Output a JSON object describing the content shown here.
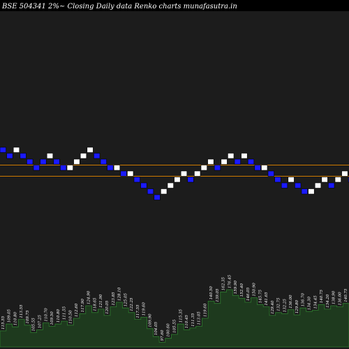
{
  "chart_data": {
    "type": "renko",
    "title": "BSE 504341 2%~  Closing Daily data  Renko  charts munafasutra.in",
    "colors": {
      "background": "#000000",
      "plot_bg": "#1c1c1c",
      "up_brick": "#ffffff",
      "down_brick": "#1a1aff",
      "brick_outline": "#000000",
      "reference_line": "#cc7a00",
      "volume_fill": "#1e3a1e",
      "volume_line": "#2e7d2e",
      "label_color": "#ffffff"
    },
    "reference_lines": [
      "upper",
      "lower"
    ],
    "bricks": [
      {
        "d": "down",
        "lvl": 0
      },
      {
        "d": "down",
        "lvl": -1
      },
      {
        "d": "up",
        "lvl": 0
      },
      {
        "d": "down",
        "lvl": -1
      },
      {
        "d": "down",
        "lvl": -2
      },
      {
        "d": "down",
        "lvl": -3
      },
      {
        "d": "down",
        "lvl": -2
      },
      {
        "d": "up",
        "lvl": -1
      },
      {
        "d": "down",
        "lvl": -2
      },
      {
        "d": "down",
        "lvl": -3
      },
      {
        "d": "up",
        "lvl": -3
      },
      {
        "d": "up",
        "lvl": -2
      },
      {
        "d": "up",
        "lvl": -1
      },
      {
        "d": "up",
        "lvl": 0
      },
      {
        "d": "down",
        "lvl": -1
      },
      {
        "d": "down",
        "lvl": -2
      },
      {
        "d": "down",
        "lvl": -3
      },
      {
        "d": "up",
        "lvl": -3
      },
      {
        "d": "down",
        "lvl": -4
      },
      {
        "d": "up",
        "lvl": -4
      },
      {
        "d": "down",
        "lvl": -5
      },
      {
        "d": "down",
        "lvl": -6
      },
      {
        "d": "down",
        "lvl": -7
      },
      {
        "d": "down",
        "lvl": -8
      },
      {
        "d": "up",
        "lvl": -7
      },
      {
        "d": "up",
        "lvl": -6
      },
      {
        "d": "up",
        "lvl": -5
      },
      {
        "d": "up",
        "lvl": -4
      },
      {
        "d": "down",
        "lvl": -5
      },
      {
        "d": "up",
        "lvl": -4
      },
      {
        "d": "up",
        "lvl": -3
      },
      {
        "d": "up",
        "lvl": -2
      },
      {
        "d": "down",
        "lvl": -3
      },
      {
        "d": "up",
        "lvl": -2
      },
      {
        "d": "up",
        "lvl": -1
      },
      {
        "d": "down",
        "lvl": -2
      },
      {
        "d": "up",
        "lvl": -1
      },
      {
        "d": "down",
        "lvl": -2
      },
      {
        "d": "down",
        "lvl": -3
      },
      {
        "d": "up",
        "lvl": -3
      },
      {
        "d": "down",
        "lvl": -4
      },
      {
        "d": "down",
        "lvl": -5
      },
      {
        "d": "down",
        "lvl": -6
      },
      {
        "d": "up",
        "lvl": -5
      },
      {
        "d": "down",
        "lvl": -6
      },
      {
        "d": "down",
        "lvl": -7
      },
      {
        "d": "up",
        "lvl": -7
      },
      {
        "d": "up",
        "lvl": -6
      },
      {
        "d": "up",
        "lvl": -5
      },
      {
        "d": "down",
        "lvl": -6
      },
      {
        "d": "up",
        "lvl": -5
      },
      {
        "d": "up",
        "lvl": -4
      },
      {
        "d": "down",
        "lvl": -5
      },
      {
        "d": "down",
        "lvl": -6
      },
      {
        "d": "up",
        "lvl": -5
      },
      {
        "d": "up",
        "lvl": -4
      }
    ],
    "volume_labels": [
      "115.55",
      "109.05",
      "110.80",
      "113.55",
      "109.75",
      "105.55",
      "107.25",
      "110.70",
      "109.50",
      "110.80",
      "111.55",
      "110.50",
      "112.60",
      "117.90",
      "124.90",
      "118.65",
      "121.90",
      "120.05",
      "123.85",
      "128.10",
      "125.05",
      "122.25",
      "117.55",
      "119.60",
      "109.90",
      "104.05",
      "97.60",
      "100.60",
      "105.55",
      "115.35",
      "110.45",
      "111.35",
      "113.05",
      "119.60",
      "140.50",
      "139.05",
      "162.35",
      "176.45",
      "159.90",
      "152.40",
      "146.05",
      "150.90",
      "145.75",
      "141.65",
      "129.40",
      "132.75",
      "132.25",
      "136.00",
      "129.80",
      "136.70",
      "134.30",
      "134.45",
      "140.75",
      "134.20",
      "138.90",
      "136.00",
      "140.75"
    ],
    "volumes": [
      0.28,
      0.4,
      0.35,
      0.48,
      0.38,
      0.25,
      0.3,
      0.42,
      0.36,
      0.4,
      0.45,
      0.38,
      0.5,
      0.58,
      0.72,
      0.6,
      0.66,
      0.55,
      0.7,
      0.78,
      0.68,
      0.6,
      0.48,
      0.52,
      0.32,
      0.18,
      0.08,
      0.15,
      0.22,
      0.4,
      0.3,
      0.33,
      0.36,
      0.5,
      0.8,
      0.76,
      0.96,
      1.0,
      0.9,
      0.85,
      0.78,
      0.86,
      0.74,
      0.7,
      0.55,
      0.6,
      0.58,
      0.65,
      0.56,
      0.68,
      0.62,
      0.64,
      0.74,
      0.66,
      0.72,
      0.7,
      0.76
    ]
  }
}
